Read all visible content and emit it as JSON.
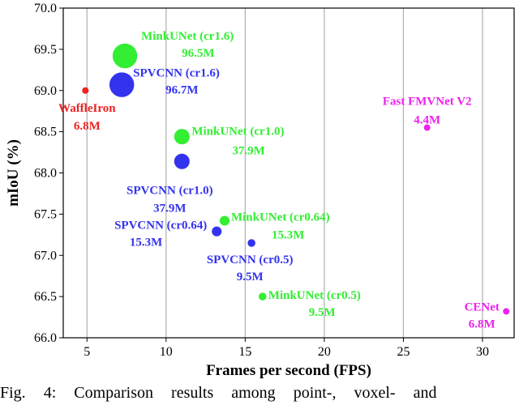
{
  "chart_data": {
    "type": "scatter",
    "xlabel": "Frames per second (FPS)",
    "ylabel": "mIoU (%)",
    "xlim": [
      3.5,
      32
    ],
    "ylim": [
      66.0,
      70.0
    ],
    "xticks": [
      5,
      10,
      15,
      20,
      25,
      30
    ],
    "yticks": [
      66.0,
      66.5,
      67.0,
      67.5,
      68.0,
      68.5,
      69.0,
      69.5,
      70.0
    ],
    "grid": "vertical lines at x ticks",
    "points": [
      {
        "label": "MinkUNet (cr1.6)",
        "params": "96.5M",
        "x": 7.4,
        "y": 69.42,
        "params_m": 96.5,
        "color": "#33ee33"
      },
      {
        "label": "SPVCNN (cr1.6)",
        "params": "96.7M",
        "x": 7.2,
        "y": 69.07,
        "params_m": 96.7,
        "color": "#3333ee"
      },
      {
        "label": "WaffleIron",
        "params": "6.8M",
        "x": 4.9,
        "y": 69.0,
        "params_m": 6.8,
        "color": "#ee2222"
      },
      {
        "label": "MinkUNet (cr1.0)",
        "params": "37.9M",
        "x": 11.0,
        "y": 68.44,
        "params_m": 37.9,
        "color": "#33ee33"
      },
      {
        "label": "SPVCNN (cr1.0)",
        "params": "37.9M",
        "x": 11.0,
        "y": 68.14,
        "params_m": 37.9,
        "color": "#3333ee"
      },
      {
        "label": "Fast FMVNet V2",
        "params": "4.4M",
        "x": 26.5,
        "y": 68.55,
        "params_m": 4.4,
        "color": "#ee22ee"
      },
      {
        "label": "MinkUNet (cr0.64)",
        "params": "15.3M",
        "x": 13.7,
        "y": 67.42,
        "params_m": 15.3,
        "color": "#33ee33"
      },
      {
        "label": "SPVCNN (cr0.64)",
        "params": "15.3M",
        "x": 13.2,
        "y": 67.29,
        "params_m": 15.3,
        "color": "#3333ee"
      },
      {
        "label": "SPVCNN (cr0.5)",
        "params": "9.5M",
        "x": 15.4,
        "y": 67.15,
        "params_m": 9.5,
        "color": "#3333ee"
      },
      {
        "label": "MinkUNet (cr0.5)",
        "params": "9.5M",
        "x": 16.1,
        "y": 66.5,
        "params_m": 9.5,
        "color": "#33ee33"
      },
      {
        "label": "CENet",
        "params": "6.8M",
        "x": 31.5,
        "y": 66.32,
        "params_m": 6.8,
        "color": "#ee22ee"
      }
    ]
  },
  "caption": [
    "Fig.",
    "4:",
    "Comparison",
    "results",
    "among",
    "point-,",
    "voxel-",
    "and"
  ]
}
